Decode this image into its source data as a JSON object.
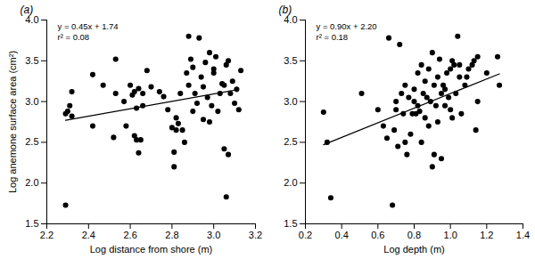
{
  "chart_data": [
    {
      "type": "scatter",
      "panel_label": "(a)",
      "annotations": [
        "y = 0.45x + 1.74",
        "r² = 0.08"
      ],
      "x_label": "Log distance from shore (m)",
      "y_label": "Log anemone surface area (cm²)",
      "color": "#000000",
      "marker": "circle",
      "x": [
        2.29,
        2.29,
        2.3,
        2.31,
        2.32,
        2.32,
        2.42,
        2.42,
        2.47,
        2.52,
        2.53,
        2.53,
        2.57,
        2.58,
        2.6,
        2.61,
        2.62,
        2.62,
        2.63,
        2.63,
        2.64,
        2.64,
        2.65,
        2.66,
        2.66,
        2.68,
        2.7,
        2.74,
        2.76,
        2.78,
        2.8,
        2.81,
        2.81,
        2.82,
        2.82,
        2.83,
        2.84,
        2.85,
        2.86,
        2.87,
        2.88,
        2.88,
        2.89,
        2.9,
        2.9,
        2.91,
        2.92,
        2.93,
        2.94,
        2.95,
        2.95,
        2.96,
        2.97,
        2.98,
        2.98,
        2.99,
        3.0,
        3.0,
        3.01,
        3.02,
        3.03,
        3.04,
        3.05,
        3.05,
        3.06,
        3.06,
        3.07,
        3.07,
        3.08,
        3.09,
        3.1,
        3.11,
        3.12,
        3.13
      ],
      "y": [
        1.73,
        2.85,
        2.88,
        2.95,
        3.12,
        2.82,
        3.33,
        2.7,
        3.2,
        2.56,
        3.52,
        3.1,
        3.0,
        2.7,
        3.2,
        3.08,
        3.12,
        2.58,
        2.92,
        2.53,
        3.16,
        2.37,
        2.53,
        2.95,
        3.1,
        3.38,
        3.18,
        3.12,
        3.06,
        2.9,
        2.68,
        2.2,
        2.38,
        2.8,
        2.65,
        2.73,
        3.1,
        2.65,
        2.5,
        3.35,
        3.8,
        3.2,
        3.52,
        3.42,
        2.88,
        3.1,
        2.98,
        3.78,
        3.3,
        3.18,
        2.78,
        3.48,
        3.05,
        3.6,
        2.75,
        2.95,
        3.35,
        3.4,
        3.55,
        2.88,
        3.1,
        3.22,
        2.42,
        3.2,
        1.83,
        3.45,
        2.35,
        3.5,
        3.1,
        3.25,
        2.98,
        3.15,
        2.9,
        3.38
      ],
      "fit_line": {
        "x": [
          2.29,
          3.1
        ],
        "y": [
          2.77,
          3.14
        ]
      },
      "xlim": [
        2.2,
        3.2
      ],
      "xticks": [
        2.2,
        2.4,
        2.6,
        2.8,
        {
          "value": 3,
          "label": "3.0"
        },
        3.2
      ],
      "ylim": [
        1.5,
        4
      ],
      "yticks": [
        1.5,
        {
          "value": 2,
          "label": "2.0"
        },
        2.5,
        {
          "value": 3,
          "label": "3.0"
        },
        3.5,
        {
          "value": 4,
          "label": "4.0"
        }
      ]
    },
    {
      "type": "scatter",
      "panel_label": "(b)",
      "annotations": [
        "y = 0.90x + 2.20",
        "r² = 0.18"
      ],
      "x_label": "Log depth (m)",
      "color": "#000000",
      "marker": "circle",
      "x": [
        0.3,
        0.32,
        0.34,
        0.51,
        0.6,
        0.63,
        0.65,
        0.66,
        0.68,
        0.69,
        0.7,
        0.7,
        0.71,
        0.72,
        0.73,
        0.74,
        0.75,
        0.75,
        0.76,
        0.77,
        0.78,
        0.79,
        0.8,
        0.8,
        0.81,
        0.82,
        0.82,
        0.83,
        0.84,
        0.84,
        0.85,
        0.86,
        0.86,
        0.87,
        0.88,
        0.88,
        0.89,
        0.9,
        0.9,
        0.91,
        0.91,
        0.92,
        0.93,
        0.93,
        0.94,
        0.95,
        0.95,
        0.96,
        0.97,
        0.97,
        0.98,
        0.99,
        1.0,
        1.0,
        1.01,
        1.01,
        1.02,
        1.03,
        1.04,
        1.05,
        1.05,
        1.06,
        1.08,
        1.09,
        1.1,
        1.12,
        1.13,
        1.14,
        1.15,
        1.15,
        1.2,
        1.26,
        1.27
      ],
      "y": [
        2.87,
        2.5,
        1.82,
        3.1,
        2.9,
        2.7,
        2.55,
        3.78,
        1.73,
        2.65,
        2.9,
        3.0,
        2.45,
        3.7,
        3.1,
        2.85,
        3.2,
        2.5,
        2.35,
        3.05,
        2.6,
        2.85,
        3.15,
        3.0,
        2.85,
        2.95,
        3.35,
        2.88,
        2.5,
        3.45,
        3.1,
        2.8,
        3.25,
        3.05,
        2.7,
        3.4,
        3.0,
        3.6,
        2.2,
        3.2,
        2.35,
        2.95,
        3.3,
        2.75,
        3.52,
        3.1,
        2.3,
        3.2,
        2.95,
        3.15,
        3.35,
        3.05,
        2.9,
        3.4,
        3.5,
        2.8,
        3.45,
        3.1,
        3.8,
        3.3,
        3.45,
        2.85,
        3.2,
        3.3,
        3.4,
        3.45,
        3.5,
        2.65,
        3.55,
        3.0,
        3.35,
        3.55,
        3.2
      ],
      "fit_line": {
        "x": [
          0.3,
          1.27
        ],
        "y": [
          2.47,
          3.34
        ]
      },
      "xlim": [
        0.2,
        1.4
      ],
      "xticks": [
        0.2,
        0.4,
        0.6,
        0.8,
        {
          "value": 1,
          "label": "1.0"
        },
        1.2,
        1.4
      ],
      "ylim": [
        1.5,
        4
      ],
      "yticks": [
        1.5,
        {
          "value": 2,
          "label": "2.0"
        },
        2.5,
        {
          "value": 3,
          "label": "3.0"
        },
        3.5,
        {
          "value": 4,
          "label": "4.0"
        }
      ]
    }
  ]
}
